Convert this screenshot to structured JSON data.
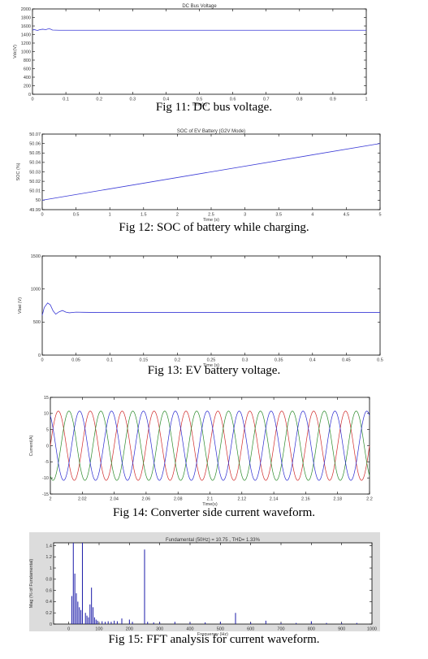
{
  "figures": [
    {
      "caption": "Fig 11: DC bus voltage.",
      "chart_data": {
        "type": "line",
        "title": "DC Bus Voltage",
        "xlabel": "Time(s)",
        "ylabel": "Vdc(V)",
        "xlim": [
          0,
          1
        ],
        "ylim": [
          0,
          2000
        ],
        "xticks": [
          "0",
          "0.1",
          "0.2",
          "0.3",
          "0.4",
          "0.5",
          "0.6",
          "0.7",
          "0.8",
          "0.9",
          "1"
        ],
        "yticks": [
          "0",
          "200",
          "400",
          "600",
          "800",
          "1000",
          "1200",
          "1400",
          "1600",
          "1800",
          "2000"
        ],
        "series": [
          {
            "x": [
              0,
              0.005,
              0.01,
              0.015,
              0.02,
              0.03,
              0.04,
              0.05,
              0.06,
              0.08,
              0.1,
              0.2,
              0.3,
              0.4,
              0.5,
              0.6,
              0.7,
              0.8,
              0.9,
              1.0
            ],
            "y": [
              1500,
              1520,
              1505,
              1495,
              1510,
              1525,
              1515,
              1540,
              1505,
              1500,
              1500,
              1500,
              1500,
              1500,
              1500,
              1500,
              1500,
              1500,
              1500,
              1500
            ]
          }
        ],
        "colors": [
          "#3a3ad6"
        ]
      }
    },
    {
      "caption": "Fig 12: SOC of battery while charging.",
      "chart_data": {
        "type": "line",
        "title": "SOC of EV Battery (G2V Mode)",
        "xlabel": "Time (s)",
        "ylabel": "SOC (%)",
        "xlim": [
          0,
          5
        ],
        "ylim": [
          49.99,
          50.07
        ],
        "xticks": [
          "0",
          "0.5",
          "1",
          "1.5",
          "2",
          "2.5",
          "3",
          "3.5",
          "4",
          "4.5",
          "5"
        ],
        "yticks": [
          "49.99",
          "50",
          "50.01",
          "50.02",
          "50.03",
          "50.04",
          "50.05",
          "50.06",
          "50.07"
        ],
        "series": [
          {
            "x": [
              0,
              5
            ],
            "y": [
              50.0,
              50.06
            ]
          }
        ],
        "colors": [
          "#3a3ad6"
        ]
      }
    },
    {
      "caption": "Fig 13: EV battery voltage.",
      "chart_data": {
        "type": "line",
        "title": "",
        "xlabel": "Time (s)",
        "ylabel": "Vbat (V)",
        "xlim": [
          0,
          0.5
        ],
        "ylim": [
          0,
          1500
        ],
        "xticks": [
          "0",
          "0.05",
          "0.1",
          "0.15",
          "0.2",
          "0.25",
          "0.3",
          "0.35",
          "0.4",
          "0.45",
          "0.5"
        ],
        "yticks": [
          "0",
          "500",
          "1000",
          "1500"
        ],
        "series": [
          {
            "x": [
              0,
              0.003,
              0.008,
              0.012,
              0.016,
              0.02,
              0.025,
              0.03,
              0.035,
              0.04,
              0.05,
              0.06,
              0.08,
              0.1,
              0.5
            ],
            "y": [
              600,
              720,
              790,
              760,
              670,
              620,
              655,
              675,
              650,
              640,
              650,
              648,
              645,
              645,
              645
            ]
          }
        ],
        "colors": [
          "#3a3ad6"
        ]
      }
    },
    {
      "caption": "Fig 14: Converter side current waveform.",
      "chart_data": {
        "type": "line",
        "title": "",
        "xlabel": "Time(s)",
        "ylabel": "Current(A)",
        "xlim": [
          2,
          2.2
        ],
        "ylim": [
          -15,
          15
        ],
        "xticks": [
          "2",
          "2.02",
          "2.04",
          "2.06",
          "2.08",
          "2.1",
          "2.12",
          "2.14",
          "2.16",
          "2.18",
          "2.2"
        ],
        "yticks": [
          "-15",
          "-10",
          "-5",
          "0",
          "5",
          "10",
          "15"
        ],
        "waveform": {
          "amplitude": 10.75,
          "frequency_hz": 50,
          "phases_deg": [
            0,
            -120,
            120
          ]
        },
        "series": [
          {
            "name": "",
            "color": "#d02a2a"
          },
          {
            "name": "",
            "color": "#2a8a2a"
          },
          {
            "name": "",
            "color": "#2a2ad0"
          }
        ]
      }
    },
    {
      "caption": "Fig 15: FFT analysis for current waveform.",
      "chart_data": {
        "type": "bar",
        "title": "Fundamental (50Hz) = 10.75 , THD= 1.33%",
        "xlabel": "Frequency (Hz)",
        "ylabel": "Mag (% of Fundamental)",
        "xlim": [
          -50,
          1000
        ],
        "ylim": [
          0,
          1.45
        ],
        "xticks": [
          "0",
          "100",
          "200",
          "300",
          "400",
          "500",
          "600",
          "700",
          "800",
          "900",
          "1000"
        ],
        "yticks": [
          "0",
          "0.2",
          "0.4",
          "0.6",
          "0.8",
          "1",
          "1.2",
          "1.4"
        ],
        "x": [
          10,
          15,
          20,
          25,
          30,
          35,
          40,
          45,
          55,
          60,
          65,
          70,
          75,
          80,
          85,
          90,
          95,
          110,
          120,
          130,
          140,
          150,
          160,
          175,
          200,
          210,
          250,
          260,
          280,
          300,
          350,
          400,
          450,
          500,
          550,
          600,
          650,
          700,
          750,
          800,
          850,
          900,
          950
        ],
        "values": [
          0.5,
          1.45,
          0.9,
          0.55,
          0.4,
          0.3,
          0.25,
          1.45,
          0.2,
          0.15,
          0.12,
          0.35,
          0.65,
          0.3,
          0.12,
          0.08,
          0.06,
          0.05,
          0.04,
          0.05,
          0.04,
          0.06,
          0.05,
          0.1,
          0.08,
          0.04,
          1.33,
          0.04,
          0.03,
          0.03,
          0.04,
          0.03,
          0.03,
          0.04,
          0.2,
          0.03,
          0.06,
          0.02,
          0.02,
          0.05,
          0.02,
          0.02,
          0.02
        ],
        "colors": [
          "#1a1aa8"
        ]
      }
    }
  ]
}
